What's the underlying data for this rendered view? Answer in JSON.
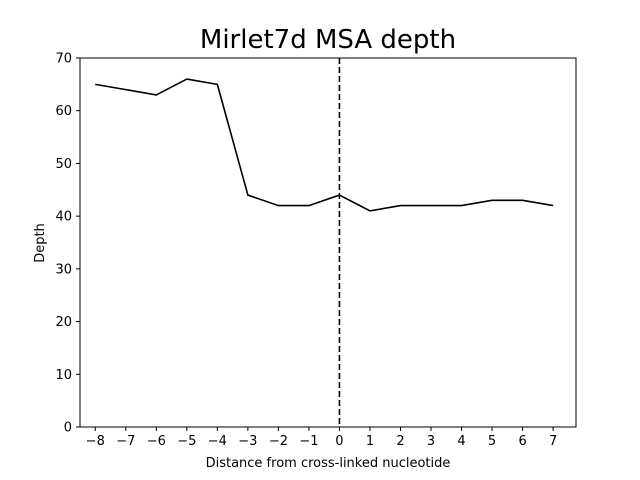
{
  "chart_data": {
    "type": "line",
    "title": "Mirlet7d MSA depth",
    "xlabel": "Distance from cross-linked nucleotide",
    "ylabel": "Depth",
    "x": [
      -8,
      -7,
      -6,
      -5,
      -4,
      -3,
      -2,
      -1,
      0,
      1,
      2,
      3,
      4,
      5,
      6,
      7
    ],
    "x_tick_labels": [
      "−8",
      "−7",
      "−6",
      "−5",
      "−4",
      "−3",
      "−2",
      "−1",
      "0",
      "1",
      "2",
      "3",
      "4",
      "5",
      "6",
      "7"
    ],
    "series": [
      {
        "values": [
          65,
          64,
          63,
          66,
          65,
          44,
          42,
          42,
          44,
          41,
          42,
          42,
          42,
          43,
          43,
          42
        ],
        "color": "#000000"
      }
    ],
    "xlim": [
      -8.5,
      7.75
    ],
    "ylim": [
      0,
      70
    ],
    "y_ticks": [
      0,
      10,
      20,
      30,
      40,
      50,
      60,
      70
    ],
    "reference_line": {
      "x": 0,
      "style": "dashed",
      "color": "#000000"
    },
    "grid": false,
    "legend": "none"
  }
}
